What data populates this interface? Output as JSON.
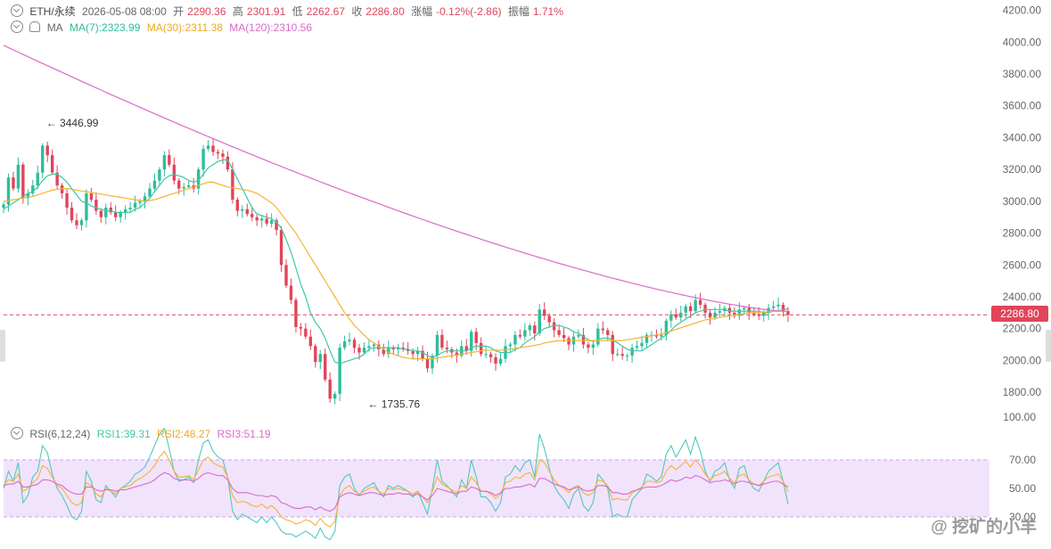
{
  "header": {
    "symbol": "ETH/永续",
    "datetime": "2026-05-08 08:00",
    "open_label": "开",
    "open": "2290.36",
    "high_label": "高",
    "high": "2301.91",
    "low_label": "低",
    "low": "2262.67",
    "close_label": "收",
    "close": "2286.80",
    "change_label": "涨幅",
    "change": "-0.12%(-2.86)",
    "amp_label": "振幅",
    "amp": "1.71%"
  },
  "ma_legend": {
    "name": "MA",
    "ma7": "MA(7):2323.99",
    "ma30": "MA(30):2311.38",
    "ma120": "MA(120):2310.56"
  },
  "rsi_legend": {
    "name": "RSI(6,12,24)",
    "rsi1": "RSI1:39.31",
    "rsi2": "RSI2:48.27",
    "rsi3": "RSI3:51.19"
  },
  "colors": {
    "up": "#2ebd9b",
    "down": "#e0455a",
    "ma7": "#3fc7a6",
    "ma30": "#f5b335",
    "ma120": "#d86bc7",
    "rsi1": "#4fc9bd",
    "rsi2": "#f5b335",
    "rsi3": "#d86bc7",
    "rsi_band": "#f1e3fb"
  },
  "last_price_tag": "2286.80",
  "watermark": "@ 挖矿的小羊",
  "chart_data": [
    {
      "type": "candlestick",
      "title": "",
      "ylim": [
        1700,
        4220
      ],
      "y_ticks": [
        "4200.00",
        "4000.00",
        "3800.00",
        "3600.00",
        "3400.00",
        "3200.00",
        "3000.00",
        "2800.00",
        "2600.00",
        "2400.00",
        "2200.00",
        "2000.00",
        "1800.00"
      ],
      "y_tick_values": [
        4200,
        4000,
        3800,
        3600,
        3400,
        3200,
        3000,
        2800,
        2600,
        2400,
        2200,
        2000,
        1800
      ],
      "last_close": 2286.8,
      "annotations": [
        {
          "text": "3446.99",
          "x": 8,
          "value": 3446.99,
          "kind": "high"
        },
        {
          "text": "1735.76",
          "x": 74,
          "value": 1735.76,
          "kind": "low"
        }
      ],
      "closes": [
        2980,
        3150,
        3080,
        3230,
        3020,
        3050,
        3100,
        3180,
        3350,
        3290,
        3180,
        3100,
        3050,
        2960,
        2880,
        2850,
        2880,
        3050,
        3010,
        2940,
        2900,
        2960,
        2930,
        2900,
        2930,
        2950,
        2960,
        2990,
        3000,
        3030,
        3080,
        3130,
        3200,
        3290,
        3230,
        3130,
        3080,
        3090,
        3100,
        3080,
        3200,
        3330,
        3350,
        3310,
        3300,
        3280,
        3200,
        3010,
        2940,
        2950,
        2920,
        2900,
        2880,
        2890,
        2860,
        2880,
        2820,
        2600,
        2470,
        2380,
        2210,
        2200,
        2150,
        2090,
        1990,
        2040,
        1880,
        1760,
        1790,
        2080,
        2120,
        2130,
        2080,
        2050,
        2080,
        2090,
        2100,
        2070,
        2040,
        2080,
        2070,
        2080,
        2070,
        2060,
        2040,
        2060,
        2010,
        1950,
        2030,
        2160,
        2080,
        2070,
        2050,
        2030,
        2090,
        2060,
        2180,
        2110,
        2040,
        2040,
        2020,
        1980,
        2010,
        2090,
        2100,
        2160,
        2150,
        2190,
        2220,
        2170,
        2320,
        2280,
        2240,
        2190,
        2160,
        2140,
        2100,
        2150,
        2160,
        2100,
        2080,
        2100,
        2200,
        2190,
        2160,
        2040,
        2040,
        2030,
        2030,
        2080,
        2090,
        2110,
        2160,
        2160,
        2150,
        2160,
        2250,
        2290,
        2270,
        2300,
        2340,
        2310,
        2380,
        2350,
        2300,
        2270,
        2300,
        2310,
        2330,
        2300,
        2280,
        2320,
        2330,
        2300,
        2290,
        2280,
        2300,
        2330,
        2340,
        2350,
        2310,
        2287
      ],
      "ma7": [
        2950,
        2970,
        2990,
        3010,
        3030,
        3050,
        3060,
        3090,
        3130,
        3160,
        3170,
        3170,
        3150,
        3120,
        3080,
        3040,
        3000,
        2990,
        2970,
        2960,
        2950,
        2940,
        2940,
        2930,
        2930,
        2930,
        2930,
        2950,
        2960,
        2990,
        3020,
        3060,
        3100,
        3140,
        3160,
        3170,
        3160,
        3150,
        3130,
        3120,
        3130,
        3170,
        3210,
        3230,
        3250,
        3260,
        3260,
        3200,
        3140,
        3080,
        3020,
        2960,
        2920,
        2910,
        2900,
        2890,
        2870,
        2830,
        2760,
        2680,
        2580,
        2480,
        2400,
        2300,
        2240,
        2200,
        2140,
        2060,
        1990,
        1980,
        1990,
        2000,
        2010,
        2020,
        2040,
        2070,
        2080,
        2080,
        2080,
        2080,
        2080,
        2080,
        2070,
        2070,
        2060,
        2060,
        2050,
        2030,
        2020,
        2030,
        2050,
        2060,
        2060,
        2060,
        2060,
        2060,
        2080,
        2090,
        2090,
        2090,
        2080,
        2060,
        2050,
        2050,
        2050,
        2070,
        2080,
        2110,
        2130,
        2150,
        2180,
        2200,
        2210,
        2220,
        2220,
        2210,
        2200,
        2180,
        2170,
        2150,
        2130,
        2120,
        2130,
        2140,
        2140,
        2130,
        2110,
        2090,
        2070,
        2060,
        2060,
        2060,
        2080,
        2100,
        2120,
        2140,
        2160,
        2190,
        2220,
        2240,
        2260,
        2280,
        2300,
        2310,
        2320,
        2320,
        2320,
        2320,
        2320,
        2310,
        2310,
        2310,
        2310,
        2310,
        2310,
        2310,
        2300,
        2300,
        2310,
        2310,
        2320,
        2324
      ],
      "ma30": [
        3000,
        3005,
        3010,
        3015,
        3020,
        3025,
        3030,
        3040,
        3050,
        3060,
        3070,
        3075,
        3080,
        3080,
        3075,
        3070,
        3065,
        3060,
        3055,
        3050,
        3045,
        3040,
        3035,
        3030,
        3025,
        3020,
        3015,
        3010,
        3005,
        3000,
        3005,
        3010,
        3020,
        3030,
        3040,
        3050,
        3060,
        3070,
        3080,
        3090,
        3100,
        3110,
        3120,
        3120,
        3110,
        3100,
        3090,
        3085,
        3080,
        3075,
        3070,
        3060,
        3050,
        3030,
        3010,
        2990,
        2960,
        2920,
        2880,
        2840,
        2800,
        2750,
        2700,
        2650,
        2600,
        2550,
        2500,
        2450,
        2400,
        2350,
        2300,
        2260,
        2220,
        2190,
        2160,
        2130,
        2110,
        2090,
        2070,
        2050,
        2040,
        2030,
        2020,
        2015,
        2010,
        2010,
        2010,
        2010,
        2010,
        2015,
        2020,
        2025,
        2030,
        2035,
        2040,
        2045,
        2050,
        2055,
        2060,
        2065,
        2065,
        2065,
        2065,
        2065,
        2070,
        2075,
        2080,
        2085,
        2090,
        2095,
        2100,
        2110,
        2115,
        2120,
        2125,
        2125,
        2125,
        2125,
        2125,
        2125,
        2125,
        2125,
        2125,
        2125,
        2125,
        2125,
        2125,
        2125,
        2130,
        2135,
        2140,
        2145,
        2150,
        2155,
        2160,
        2165,
        2175,
        2185,
        2195,
        2205,
        2215,
        2225,
        2235,
        2245,
        2255,
        2260,
        2265,
        2270,
        2275,
        2280,
        2285,
        2290,
        2295,
        2300,
        2300,
        2302,
        2304,
        2306,
        2308,
        2310,
        2311
      ],
      "ma120_end": 2310.56
    },
    {
      "type": "line",
      "title": "",
      "ylim": [
        15,
        100
      ],
      "y_ticks": [
        "100.00",
        "70.00",
        "50.00",
        "30.00"
      ],
      "y_tick_values": [
        100,
        70,
        50,
        30
      ],
      "band": [
        30,
        70
      ],
      "series": [
        {
          "name": "RSI1",
          "values": [
            50,
            62,
            55,
            68,
            40,
            45,
            58,
            62,
            80,
            75,
            60,
            50,
            45,
            38,
            30,
            28,
            34,
            62,
            55,
            42,
            40,
            52,
            48,
            44,
            50,
            52,
            55,
            60,
            62,
            65,
            72,
            80,
            88,
            92,
            78,
            62,
            55,
            56,
            58,
            54,
            70,
            82,
            84,
            76,
            72,
            70,
            58,
            34,
            28,
            32,
            30,
            28,
            26,
            30,
            26,
            30,
            26,
            20,
            18,
            18,
            16,
            18,
            20,
            18,
            15,
            22,
            16,
            14,
            20,
            52,
            58,
            60,
            50,
            45,
            50,
            52,
            54,
            48,
            44,
            52,
            50,
            52,
            50,
            48,
            44,
            48,
            40,
            32,
            50,
            70,
            55,
            52,
            48,
            44,
            56,
            50,
            70,
            58,
            44,
            44,
            40,
            34,
            40,
            58,
            60,
            66,
            62,
            68,
            70,
            58,
            88,
            78,
            64,
            52,
            46,
            42,
            36,
            46,
            50,
            38,
            34,
            40,
            60,
            56,
            50,
            30,
            32,
            30,
            30,
            42,
            46,
            50,
            60,
            58,
            55,
            58,
            74,
            80,
            72,
            78,
            84,
            74,
            86,
            76,
            62,
            55,
            62,
            64,
            68,
            56,
            50,
            64,
            66,
            55,
            50,
            48,
            55,
            62,
            65,
            68,
            55,
            39
          ]
        },
        {
          "name": "RSI2",
          "values": [
            52,
            56,
            55,
            60,
            48,
            50,
            54,
            57,
            66,
            64,
            58,
            52,
            50,
            45,
            40,
            38,
            40,
            54,
            52,
            46,
            44,
            50,
            48,
            46,
            50,
            51,
            52,
            55,
            57,
            59,
            62,
            66,
            72,
            76,
            70,
            62,
            58,
            58,
            59,
            56,
            63,
            70,
            72,
            68,
            66,
            65,
            58,
            45,
            40,
            41,
            40,
            38,
            37,
            39,
            36,
            38,
            35,
            30,
            28,
            27,
            25,
            26,
            28,
            27,
            24,
            29,
            25,
            23,
            27,
            45,
            50,
            52,
            48,
            46,
            48,
            50,
            51,
            48,
            46,
            50,
            49,
            50,
            49,
            48,
            46,
            48,
            44,
            40,
            48,
            58,
            53,
            51,
            49,
            47,
            52,
            50,
            58,
            54,
            48,
            48,
            46,
            43,
            46,
            54,
            55,
            58,
            57,
            60,
            61,
            56,
            70,
            68,
            62,
            56,
            52,
            50,
            47,
            51,
            52,
            47,
            45,
            47,
            56,
            55,
            52,
            42,
            43,
            42,
            42,
            47,
            49,
            51,
            55,
            55,
            54,
            55,
            62,
            66,
            63,
            66,
            69,
            65,
            70,
            66,
            60,
            56,
            59,
            60,
            62,
            57,
            54,
            59,
            60,
            56,
            53,
            52,
            55,
            58,
            59,
            60,
            55,
            48
          ]
        },
        {
          "name": "RSI3",
          "values": [
            52,
            53,
            53,
            55,
            51,
            51,
            52,
            53,
            56,
            56,
            55,
            53,
            52,
            49,
            47,
            46,
            46,
            51,
            51,
            49,
            48,
            49,
            49,
            48,
            49,
            49,
            50,
            51,
            52,
            53,
            54,
            56,
            59,
            61,
            60,
            57,
            56,
            56,
            56,
            55,
            57,
            60,
            61,
            60,
            59,
            59,
            56,
            50,
            47,
            47,
            47,
            46,
            45,
            45,
            44,
            45,
            44,
            40,
            39,
            37,
            36,
            36,
            37,
            37,
            35,
            37,
            35,
            34,
            36,
            44,
            46,
            47,
            46,
            45,
            46,
            47,
            47,
            46,
            45,
            46,
            46,
            47,
            46,
            46,
            45,
            46,
            44,
            42,
            45,
            50,
            49,
            48,
            47,
            46,
            48,
            48,
            51,
            50,
            48,
            48,
            47,
            45,
            47,
            50,
            50,
            51,
            51,
            52,
            53,
            51,
            57,
            57,
            55,
            53,
            52,
            51,
            49,
            50,
            51,
            49,
            48,
            49,
            52,
            52,
            51,
            47,
            47,
            46,
            46,
            48,
            49,
            50,
            51,
            51,
            51,
            52,
            54,
            56,
            55,
            56,
            58,
            57,
            59,
            58,
            56,
            54,
            55,
            55,
            56,
            55,
            53,
            55,
            55,
            54,
            53,
            52,
            53,
            54,
            55,
            55,
            53,
            51
          ]
        }
      ]
    }
  ]
}
